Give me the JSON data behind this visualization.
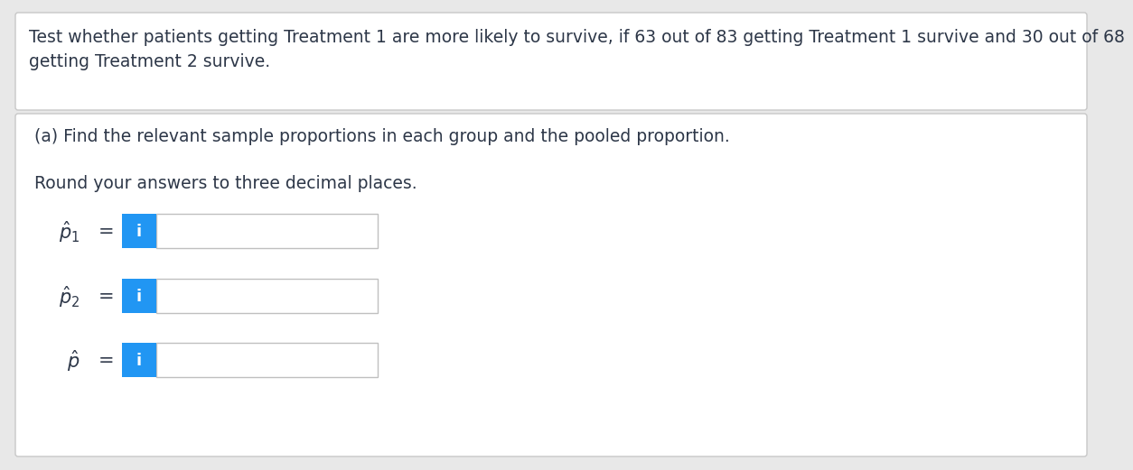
{
  "background_color": "#e8e8e8",
  "top_box_bg": "#ffffff",
  "bottom_box_bg": "#ffffff",
  "top_text": "Test whether patients getting Treatment 1 are more likely to survive, if 63 out of 83 getting Treatment 1 survive and 30 out of 68\ngetting Treatment 2 survive.",
  "part_a_text": "(a) Find the relevant sample proportions in each group and the pooled proportion.",
  "round_text": "Round your answers to three decimal places.",
  "label1": "$\\hat{p}_1$",
  "label2": "$\\hat{p}_2$",
  "label3": "$\\hat{p}$",
  "equals": "=",
  "input_box_color": "#ffffff",
  "input_box_border": "#c0c0c0",
  "button_color": "#2196F3",
  "button_text": "i",
  "button_text_color": "#ffffff",
  "text_color": "#2d3748",
  "font_size_top": 13.5,
  "font_size_label": 15,
  "font_size_round": 13.5,
  "font_size_parta": 13.5,
  "fig_width": 12.0,
  "fig_height": 5.02
}
